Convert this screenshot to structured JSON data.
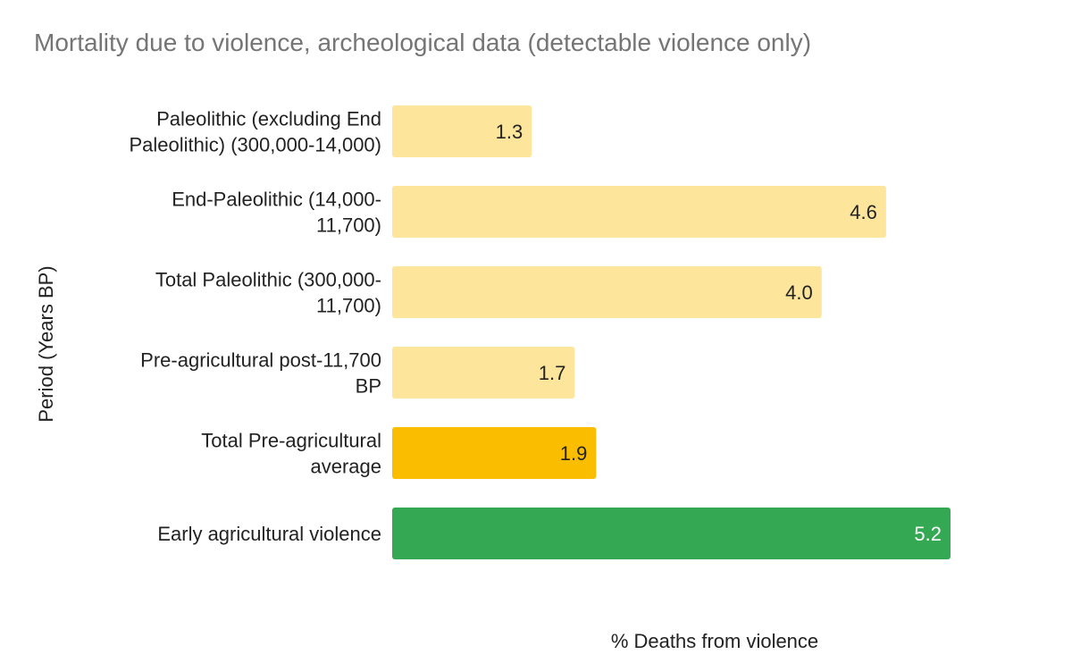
{
  "chart_data": {
    "type": "bar",
    "orientation": "horizontal",
    "title": "Mortality due to violence, archeological data (detectable violence only)",
    "xlabel": "% Deaths from violence",
    "ylabel": "Period (Years BP)",
    "xlim": [
      0,
      5.2
    ],
    "grid": false,
    "legend": "none",
    "categories": [
      [
        "Paleolithic (excluding End",
        "Paleolithic) (300,000-14,000)"
      ],
      [
        "End-Paleolithic (14,000-",
        "11,700)"
      ],
      [
        "Total Paleolithic (300,000-",
        "11,700)"
      ],
      [
        "Pre-agricultural post-11,700",
        "BP"
      ],
      [
        "Total Pre-agricultural",
        "average"
      ],
      [
        "Early agricultural violence"
      ]
    ],
    "values": [
      1.3,
      4.6,
      4.0,
      1.7,
      1.9,
      5.2
    ],
    "data_labels": [
      "1.3",
      "4.6",
      "4.0",
      "1.7",
      "1.9",
      "5.2"
    ],
    "bar_colors": [
      "#fde59c",
      "#fde59c",
      "#fde59c",
      "#fde59c",
      "#fabd00",
      "#34a853"
    ],
    "label_colors": [
      "#222222",
      "#222222",
      "#222222",
      "#222222",
      "#222222",
      "#ffffff"
    ]
  }
}
